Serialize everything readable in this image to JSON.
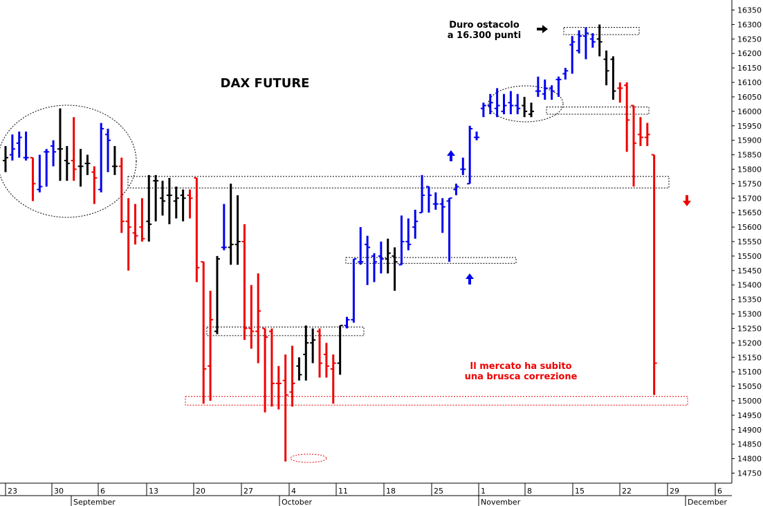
{
  "chart_data": {
    "type": "ohlc",
    "title": "DAX FUTURE",
    "y_axis": {
      "position": "right",
      "min": 14750,
      "max": 16350,
      "step": 50
    },
    "x_axis": {
      "day_labels": [
        "23",
        "30",
        "6",
        "13",
        "20",
        "27",
        "4",
        "11",
        "18",
        "25",
        "1",
        "8",
        "15",
        "22",
        "29",
        "6"
      ],
      "month_labels": [
        "September",
        "October",
        "November",
        "December"
      ]
    },
    "colors": {
      "up": "#0000ee",
      "down": "#ee0000",
      "neutral": "#000000",
      "box_red": "#ee0000",
      "box_black": "#000000"
    },
    "bars": [
      {
        "color": "black",
        "open": 15830,
        "high": 15880,
        "low": 15790,
        "close": 15840
      },
      {
        "color": "blue",
        "open": 15850,
        "high": 15920,
        "low": 15830,
        "close": 15870
      },
      {
        "color": "blue",
        "open": 15890,
        "high": 15930,
        "low": 15840,
        "close": 15910
      },
      {
        "color": "blue",
        "open": 15840,
        "high": 15930,
        "low": 15830,
        "close": 15840
      },
      {
        "color": "red",
        "open": 15840,
        "high": 15840,
        "low": 15690,
        "close": 15750
      },
      {
        "color": "blue",
        "open": 15730,
        "high": 15850,
        "low": 15720,
        "close": 15740
      },
      {
        "color": "blue",
        "open": 15860,
        "high": 15870,
        "low": 15740,
        "close": 15860
      },
      {
        "color": "blue",
        "open": 15880,
        "high": 15900,
        "low": 15810,
        "close": 15860
      },
      {
        "color": "black",
        "open": 15870,
        "high": 16010,
        "low": 15760,
        "close": 15870
      },
      {
        "color": "black",
        "open": 15830,
        "high": 15880,
        "low": 15760,
        "close": 15820
      },
      {
        "color": "red",
        "open": 15830,
        "high": 15980,
        "low": 15760,
        "close": 15800
      },
      {
        "color": "black",
        "open": 15810,
        "high": 15870,
        "low": 15740,
        "close": 15810
      },
      {
        "color": "black",
        "open": 15820,
        "high": 15850,
        "low": 15780,
        "close": 15820
      },
      {
        "color": "red",
        "open": 15790,
        "high": 15810,
        "low": 15680,
        "close": 15770
      },
      {
        "color": "blue",
        "open": 15730,
        "high": 15960,
        "low": 15720,
        "close": 15940
      },
      {
        "color": "blue",
        "open": 15920,
        "high": 15940,
        "low": 15790,
        "close": 15900
      },
      {
        "color": "black",
        "open": 15810,
        "high": 15880,
        "low": 15780,
        "close": 15810
      },
      {
        "color": "red",
        "open": 15810,
        "high": 15840,
        "low": 15580,
        "close": 15620
      },
      {
        "color": "red",
        "open": 15620,
        "high": 15700,
        "low": 15450,
        "close": 15600
      },
      {
        "color": "red",
        "open": 15580,
        "high": 15680,
        "low": 15540,
        "close": 15570
      },
      {
        "color": "red",
        "open": 15600,
        "high": 15700,
        "low": 15550,
        "close": 15560
      },
      {
        "color": "black",
        "open": 15620,
        "high": 15780,
        "low": 15550,
        "close": 15610
      },
      {
        "color": "black",
        "open": 15760,
        "high": 15780,
        "low": 15620,
        "close": 15760
      },
      {
        "color": "black",
        "open": 15700,
        "high": 15760,
        "low": 15640,
        "close": 15690
      },
      {
        "color": "black",
        "open": 15710,
        "high": 15770,
        "low": 15610,
        "close": 15710
      },
      {
        "color": "black",
        "open": 15690,
        "high": 15740,
        "low": 15630,
        "close": 15700
      },
      {
        "color": "black",
        "open": 15710,
        "high": 15730,
        "low": 15620,
        "close": 15700
      },
      {
        "color": "red",
        "open": 15710,
        "high": 15730,
        "low": 15630,
        "close": 15700
      },
      {
        "color": "red",
        "open": 15770,
        "high": 15770,
        "low": 15410,
        "close": 15460
      },
      {
        "color": "red",
        "open": 15480,
        "high": 15480,
        "low": 14990,
        "close": 15110
      },
      {
        "color": "red",
        "open": 15120,
        "high": 15380,
        "low": 15000,
        "close": 15280
      },
      {
        "color": "black",
        "open": 15240,
        "high": 15500,
        "low": 15230,
        "close": 15490
      },
      {
        "color": "blue",
        "open": 15530,
        "high": 15680,
        "low": 15520,
        "close": 15530
      },
      {
        "color": "black",
        "open": 15530,
        "high": 15750,
        "low": 15470,
        "close": 15540
      },
      {
        "color": "black",
        "open": 15540,
        "high": 15710,
        "low": 15470,
        "close": 15550
      },
      {
        "color": "red",
        "open": 15550,
        "high": 15610,
        "low": 15210,
        "close": 15250
      },
      {
        "color": "red",
        "open": 15250,
        "high": 15400,
        "low": 15180,
        "close": 15240
      },
      {
        "color": "red",
        "open": 15240,
        "high": 15440,
        "low": 15130,
        "close": 15310
      },
      {
        "color": "red",
        "open": 15250,
        "high": 15250,
        "low": 14960,
        "close": 15220
      },
      {
        "color": "red",
        "open": 15240,
        "high": 15250,
        "low": 14980,
        "close": 15060
      },
      {
        "color": "red",
        "open": 15060,
        "high": 15120,
        "low": 14970,
        "close": 15060
      },
      {
        "color": "red",
        "open": 15070,
        "high": 15160,
        "low": 14790,
        "close": 15020
      },
      {
        "color": "red",
        "open": 15030,
        "high": 15190,
        "low": 14980,
        "close": 15060
      },
      {
        "color": "black",
        "open": 15120,
        "high": 15150,
        "low": 15070,
        "close": 15090
      },
      {
        "color": "black",
        "open": 15160,
        "high": 15260,
        "low": 15070,
        "close": 15200
      },
      {
        "color": "black",
        "open": 15200,
        "high": 15250,
        "low": 15130,
        "close": 15210
      },
      {
        "color": "red",
        "open": 15240,
        "high": 15250,
        "low": 15080,
        "close": 15130
      },
      {
        "color": "red",
        "open": 15160,
        "high": 15200,
        "low": 15080,
        "close": 15120
      },
      {
        "color": "red",
        "open": 15110,
        "high": 15160,
        "low": 14990,
        "close": 15130
      },
      {
        "color": "black",
        "open": 15130,
        "high": 15260,
        "low": 15090,
        "close": 15260
      },
      {
        "color": "blue",
        "open": 15260,
        "high": 15290,
        "low": 15250,
        "close": 15280
      },
      {
        "color": "blue",
        "open": 15280,
        "high": 15490,
        "low": 15270,
        "close": 15490
      },
      {
        "color": "blue",
        "open": 15480,
        "high": 15600,
        "low": 15470,
        "close": 15480
      },
      {
        "color": "blue",
        "open": 15540,
        "high": 15570,
        "low": 15400,
        "close": 15530
      },
      {
        "color": "blue",
        "open": 15500,
        "high": 15510,
        "low": 15410,
        "close": 15480
      },
      {
        "color": "blue",
        "open": 15500,
        "high": 15550,
        "low": 15440,
        "close": 15490
      },
      {
        "color": "black",
        "open": 15490,
        "high": 15560,
        "low": 15440,
        "close": 15510
      },
      {
        "color": "black",
        "open": 15500,
        "high": 15530,
        "low": 15380,
        "close": 15480
      },
      {
        "color": "blue",
        "open": 15470,
        "high": 15640,
        "low": 15470,
        "close": 15550
      },
      {
        "color": "blue",
        "open": 15550,
        "high": 15630,
        "low": 15520,
        "close": 15540
      },
      {
        "color": "blue",
        "open": 15600,
        "high": 15660,
        "low": 15560,
        "close": 15620
      },
      {
        "color": "blue",
        "open": 15650,
        "high": 15780,
        "low": 15650,
        "close": 15710
      },
      {
        "color": "blue",
        "open": 15740,
        "high": 15740,
        "low": 15650,
        "close": 15710
      },
      {
        "color": "blue",
        "open": 15680,
        "high": 15720,
        "low": 15660,
        "close": 15680
      },
      {
        "color": "blue",
        "open": 15680,
        "high": 15700,
        "low": 15580,
        "close": 15670
      },
      {
        "color": "blue",
        "open": 15690,
        "high": 15700,
        "low": 15480,
        "close": 15700
      },
      {
        "color": "blue",
        "open": 15730,
        "high": 15750,
        "low": 15710,
        "close": 15740
      },
      {
        "color": "blue",
        "open": 15800,
        "high": 15840,
        "low": 15780,
        "close": 15800
      },
      {
        "color": "blue",
        "open": 15750,
        "high": 15950,
        "low": 15750,
        "close": 15940
      },
      {
        "color": "blue",
        "open": 15910,
        "high": 15930,
        "low": 15900,
        "close": 15910
      },
      {
        "color": "blue",
        "open": 16010,
        "high": 16030,
        "low": 15980,
        "close": 16020
      },
      {
        "color": "blue",
        "open": 16020,
        "high": 16060,
        "low": 15990,
        "close": 16030
      },
      {
        "color": "blue",
        "open": 16010,
        "high": 16080,
        "low": 15980,
        "close": 16020
      },
      {
        "color": "blue",
        "open": 16000,
        "high": 16060,
        "low": 15990,
        "close": 16020
      },
      {
        "color": "blue",
        "open": 16030,
        "high": 16070,
        "low": 15990,
        "close": 16020
      },
      {
        "color": "blue",
        "open": 16020,
        "high": 16060,
        "low": 15990,
        "close": 16010
      },
      {
        "color": "black",
        "open": 16020,
        "high": 16050,
        "low": 15980,
        "close": 16000
      },
      {
        "color": "black",
        "open": 15990,
        "high": 16030,
        "low": 15980,
        "close": 16000
      },
      {
        "color": "blue",
        "open": 16070,
        "high": 16120,
        "low": 16050,
        "close": 16070
      },
      {
        "color": "blue",
        "open": 16060,
        "high": 16110,
        "low": 16040,
        "close": 16080
      },
      {
        "color": "blue",
        "open": 16080,
        "high": 16090,
        "low": 16040,
        "close": 16070
      },
      {
        "color": "blue",
        "open": 16110,
        "high": 16120,
        "low": 16050,
        "close": 16110
      },
      {
        "color": "blue",
        "open": 16130,
        "high": 16150,
        "low": 16110,
        "close": 16140
      },
      {
        "color": "blue",
        "open": 16230,
        "high": 16260,
        "low": 16130,
        "close": 16240
      },
      {
        "color": "blue",
        "open": 16210,
        "high": 16280,
        "low": 16200,
        "close": 16260
      },
      {
        "color": "blue",
        "open": 16260,
        "high": 16290,
        "low": 16180,
        "close": 16270
      },
      {
        "color": "blue",
        "open": 16250,
        "high": 16270,
        "low": 16220,
        "close": 16240
      },
      {
        "color": "black",
        "open": 16250,
        "high": 16300,
        "low": 16190,
        "close": 16240
      },
      {
        "color": "black",
        "open": 16180,
        "high": 16210,
        "low": 16090,
        "close": 16140
      },
      {
        "color": "black",
        "open": 16180,
        "high": 16190,
        "low": 16040,
        "close": 16070
      },
      {
        "color": "red",
        "open": 16080,
        "high": 16100,
        "low": 16030,
        "close": 16080
      },
      {
        "color": "red",
        "open": 16090,
        "high": 16100,
        "low": 15860,
        "close": 15970
      },
      {
        "color": "red",
        "open": 16020,
        "high": 16020,
        "low": 15740,
        "close": 15890
      },
      {
        "color": "red",
        "open": 15920,
        "high": 15980,
        "low": 15880,
        "close": 15910
      },
      {
        "color": "red",
        "open": 15910,
        "high": 15960,
        "low": 15880,
        "close": 15920
      },
      {
        "color": "red",
        "open": 15850,
        "high": 15850,
        "low": 15020,
        "close": 15130
      }
    ],
    "annotations": {
      "resistance_line1": "Duro ostacolo",
      "resistance_line2": "a 16.300 punti",
      "correction_line1": "Il mercato ha subito",
      "correction_line2": "una brusca correzione",
      "title": "DAX FUTURE"
    }
  }
}
